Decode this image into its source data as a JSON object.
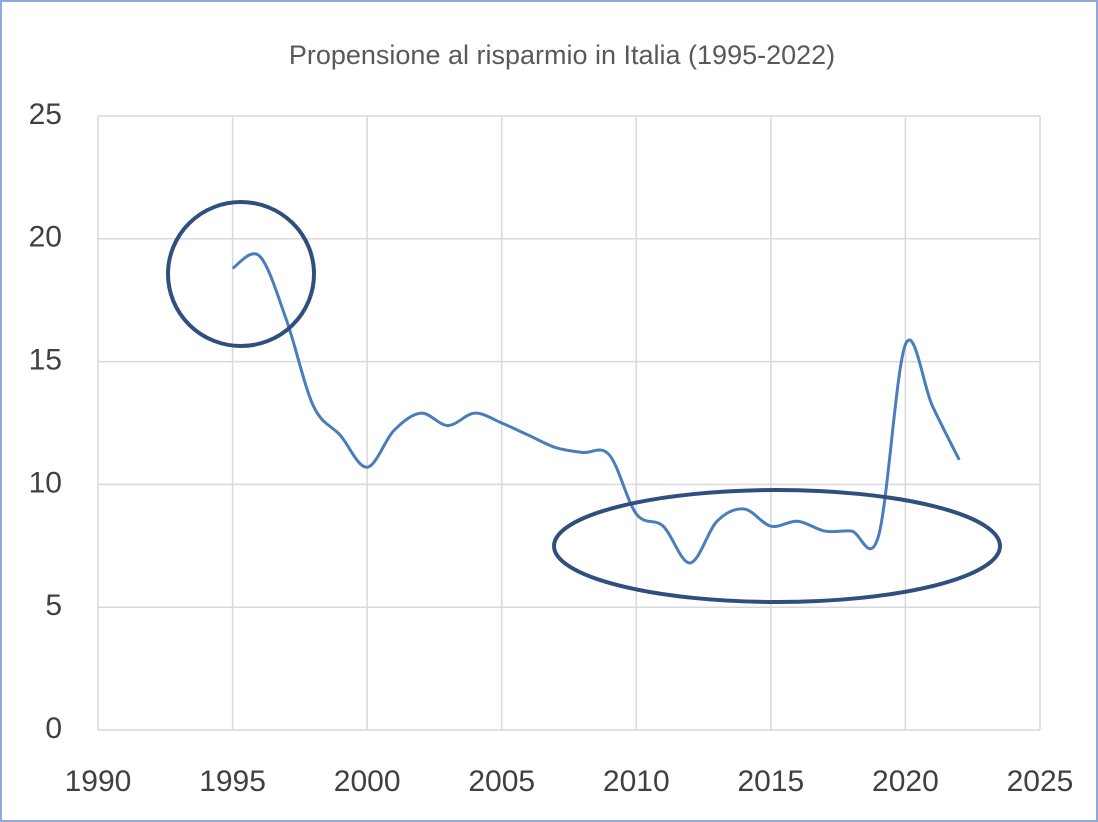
{
  "chart_data": {
    "type": "line",
    "title": "Propensione al risparmio in Italia (1995-2022)",
    "x": [
      1995,
      1996,
      1997,
      1998,
      1999,
      2000,
      2001,
      2002,
      2003,
      2004,
      2005,
      2006,
      2007,
      2008,
      2009,
      2010,
      2011,
      2012,
      2013,
      2014,
      2015,
      2016,
      2017,
      2018,
      2019,
      2020,
      2021,
      2022
    ],
    "series": [
      {
        "name": "Propensione al risparmio",
        "color": "#4a7ebb",
        "values": [
          18.8,
          19.3,
          16.7,
          13.2,
          12.0,
          10.7,
          12.2,
          12.9,
          12.4,
          12.9,
          12.5,
          12.0,
          11.5,
          11.3,
          11.2,
          8.8,
          8.3,
          6.8,
          8.5,
          9.0,
          8.3,
          8.5,
          8.1,
          8.1,
          7.9,
          15.7,
          13.2,
          11.0
        ]
      }
    ],
    "xlim": [
      1990,
      2025
    ],
    "xticks": [
      1990,
      1995,
      2000,
      2005,
      2010,
      2015,
      2020,
      2025
    ],
    "ylim": [
      0,
      25
    ],
    "yticks": [
      0,
      5,
      10,
      15,
      20,
      25
    ],
    "grid": true
  }
}
